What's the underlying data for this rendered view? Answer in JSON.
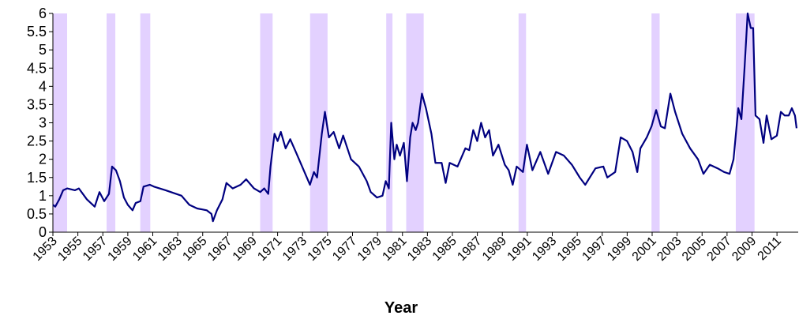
{
  "chart_data": {
    "type": "line",
    "x_label": "Year",
    "color": "#000080",
    "xlim": [
      1953,
      2012.7
    ],
    "ylim": [
      0,
      6
    ],
    "xticks": [
      1953,
      1955,
      1957,
      1959,
      1961,
      1963,
      1965,
      1967,
      1969,
      1971,
      1973,
      1975,
      1977,
      1979,
      1981,
      1983,
      1985,
      1987,
      1989,
      1991,
      1993,
      1995,
      1997,
      1999,
      2001,
      2003,
      2005,
      2007,
      2009,
      2011
    ],
    "yticks": [
      0,
      0.5,
      1,
      1.5,
      2,
      2.5,
      3,
      3.5,
      4,
      4.5,
      5,
      5.5,
      6
    ],
    "shaded_ranges": [
      [
        1953.0,
        1954.14
      ],
      [
        1957.3,
        1958.0
      ],
      [
        1960.0,
        1960.8
      ],
      [
        1969.6,
        1970.6
      ],
      [
        1973.6,
        1975.0
      ],
      [
        1979.7,
        1980.2
      ],
      [
        1981.3,
        1982.7
      ],
      [
        1990.3,
        1990.9
      ],
      [
        2000.95,
        2001.6
      ],
      [
        2007.7,
        2009.2
      ]
    ],
    "shade_color": "#d9c2ff",
    "x": [
      1953.0,
      1953.19,
      1953.51,
      1953.82,
      1954.14,
      1954.77,
      1955.08,
      1955.72,
      1956.35,
      1956.73,
      1957.11,
      1957.49,
      1957.74,
      1958.05,
      1958.37,
      1958.69,
      1959.0,
      1959.38,
      1959.63,
      1960.01,
      1960.26,
      1960.77,
      1961.09,
      1962.03,
      1963.3,
      1963.93,
      1964.56,
      1965.32,
      1965.7,
      1965.82,
      1966.14,
      1966.58,
      1966.9,
      1967.4,
      1968.03,
      1968.48,
      1969.11,
      1969.61,
      1969.93,
      1970.25,
      1970.43,
      1970.75,
      1971.0,
      1971.26,
      1971.64,
      1972.01,
      1972.46,
      1973.09,
      1973.59,
      1973.91,
      1974.16,
      1974.54,
      1974.79,
      1975.11,
      1975.49,
      1975.93,
      1976.25,
      1976.88,
      1977.51,
      1978.14,
      1978.46,
      1978.96,
      1979.4,
      1979.66,
      1979.91,
      1980.1,
      1980.35,
      1980.54,
      1980.8,
      1981.11,
      1981.36,
      1981.62,
      1981.81,
      1982.06,
      1982.25,
      1982.56,
      1982.88,
      1983.32,
      1983.64,
      1984.14,
      1984.46,
      1984.78,
      1985.41,
      1986.04,
      1986.35,
      1986.67,
      1986.99,
      1987.3,
      1987.62,
      1987.94,
      1988.25,
      1988.69,
      1989.2,
      1989.51,
      1989.83,
      1990.15,
      1990.65,
      1990.97,
      1991.41,
      1992.04,
      1992.67,
      1993.3,
      1993.93,
      1994.57,
      1995.2,
      1995.64,
      1996.46,
      1997.09,
      1997.41,
      1998.04,
      1998.48,
      1998.99,
      1999.43,
      1999.81,
      2000.06,
      2000.57,
      2000.95,
      2001.32,
      2001.7,
      2002.02,
      2002.46,
      2002.84,
      2003.41,
      2004.04,
      2004.67,
      2005.11,
      2005.62,
      2006.25,
      2006.76,
      2007.2,
      2007.52,
      2007.9,
      2008.15,
      2008.4,
      2008.65,
      2008.9,
      2009.09,
      2009.28,
      2009.6,
      2009.92,
      2010.17,
      2010.55,
      2010.99,
      2011.31,
      2011.62,
      2011.94,
      2012.19,
      2012.44,
      2012.57
    ],
    "values": [
      0.75,
      0.7,
      0.9,
      1.15,
      1.2,
      1.15,
      1.2,
      0.9,
      0.7,
      1.1,
      0.85,
      1.05,
      1.8,
      1.7,
      1.4,
      0.95,
      0.75,
      0.6,
      0.8,
      0.85,
      1.25,
      1.3,
      1.25,
      1.15,
      1.0,
      0.75,
      0.65,
      0.6,
      0.5,
      0.3,
      0.6,
      0.9,
      1.35,
      1.2,
      1.3,
      1.45,
      1.2,
      1.1,
      1.2,
      1.05,
      1.8,
      2.7,
      2.5,
      2.75,
      2.3,
      2.55,
      2.2,
      1.7,
      1.3,
      1.65,
      1.5,
      2.7,
      3.3,
      2.6,
      2.75,
      2.3,
      2.65,
      2.0,
      1.8,
      1.4,
      1.1,
      0.95,
      1.0,
      1.4,
      1.2,
      3.0,
      2.0,
      2.4,
      2.1,
      2.45,
      1.4,
      2.6,
      3.0,
      2.8,
      3.0,
      3.8,
      3.4,
      2.7,
      1.9,
      1.9,
      1.35,
      1.9,
      1.8,
      2.3,
      2.25,
      2.8,
      2.5,
      3.0,
      2.6,
      2.8,
      2.1,
      2.4,
      1.85,
      1.7,
      1.3,
      1.8,
      1.65,
      2.4,
      1.7,
      2.2,
      1.6,
      2.2,
      2.1,
      1.85,
      1.5,
      1.3,
      1.75,
      1.8,
      1.5,
      1.65,
      2.6,
      2.5,
      2.2,
      1.65,
      2.3,
      2.6,
      2.9,
      3.35,
      2.9,
      2.85,
      3.8,
      3.3,
      2.7,
      2.3,
      2.0,
      1.6,
      1.85,
      1.75,
      1.65,
      1.6,
      2.0,
      3.4,
      3.1,
      4.5,
      6.0,
      5.6,
      5.6,
      3.2,
      3.1,
      2.45,
      3.2,
      2.55,
      2.65,
      3.3,
      3.2,
      3.2,
      3.4,
      3.2,
      2.85
    ]
  }
}
